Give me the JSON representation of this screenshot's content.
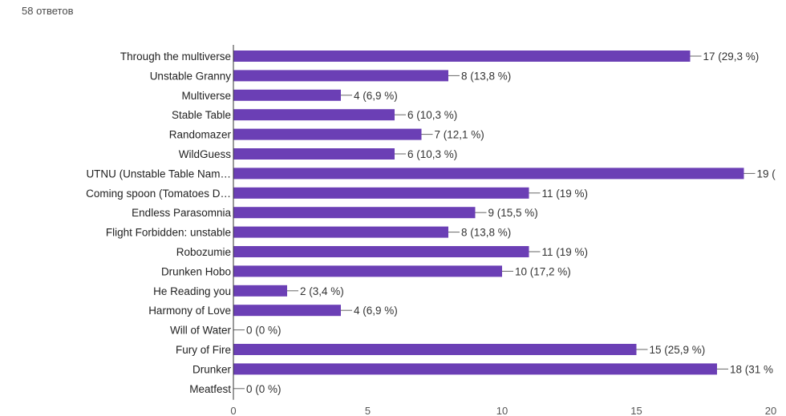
{
  "header": {
    "response_count": "58 ответов"
  },
  "colors": {
    "bar": "#6b3fb5",
    "axis": "#333333",
    "leader": "#666666"
  },
  "chart_data": {
    "type": "bar",
    "orientation": "horizontal",
    "categories": [
      "Through the multiverse",
      "Unstable Granny",
      "Multiverse",
      "Stable Table",
      "Randomazer",
      "WildGuess",
      "UTNU (Unstable Table Nam…",
      "Coming spoon (Tomatoes D…",
      "Endless Parasomnia",
      "Flight Forbidden: unstable",
      "Robozumie",
      "Drunken Hobo",
      "He Reading you",
      "Harmony of Love",
      "Will of Water",
      "Fury of Fire",
      "Drunker",
      "Meatfest"
    ],
    "values": [
      17,
      8,
      4,
      6,
      7,
      6,
      19,
      11,
      9,
      8,
      11,
      10,
      2,
      4,
      0,
      15,
      18,
      0
    ],
    "data_labels": [
      "17 (29,3 %)",
      "8 (13,8 %)",
      "4 (6,9 %)",
      "6 (10,3 %)",
      "7 (12,1 %)",
      "6 (10,3 %)",
      "19 (",
      "11 (19 %)",
      "9 (15,5 %)",
      "8 (13,8 %)",
      "11 (19 %)",
      "10 (17,2 %)",
      "2 (3,4 %)",
      "4 (6,9 %)",
      "0 (0 %)",
      "15 (25,9 %)",
      "18 (31 %",
      "0 (0 %)"
    ],
    "x_ticks": [
      "0",
      "5",
      "10",
      "15",
      "20"
    ],
    "xlim": [
      0,
      20
    ],
    "grid": false
  }
}
